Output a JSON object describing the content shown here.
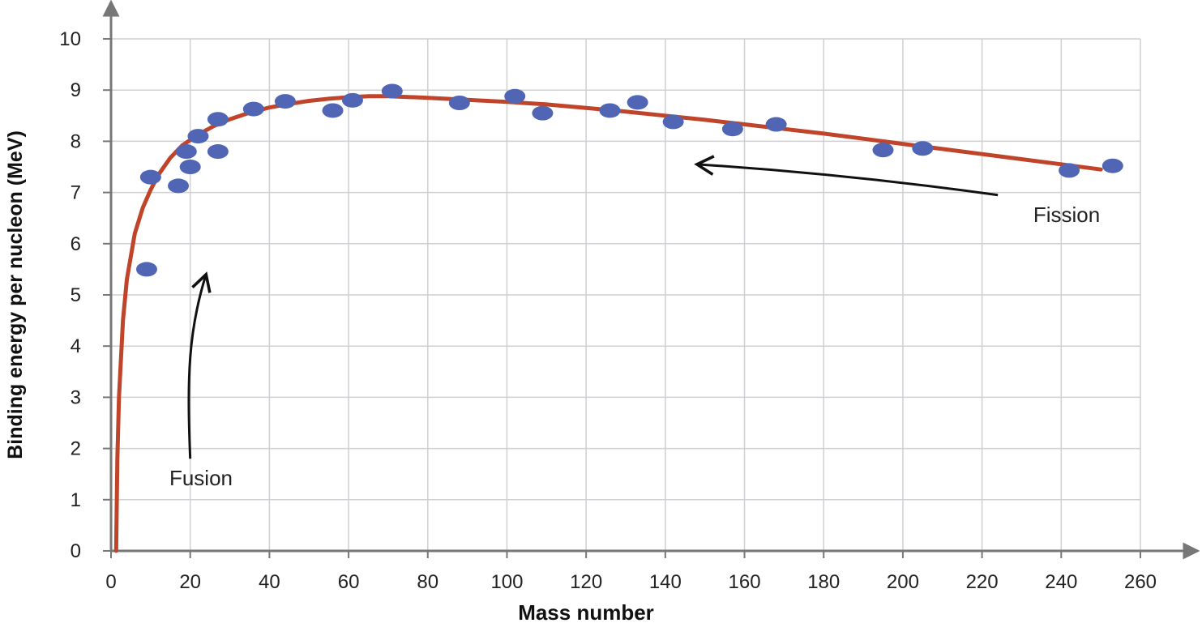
{
  "chart_data": {
    "type": "scatter",
    "title": "",
    "xlabel": "Mass number",
    "ylabel": "Binding energy per nucleon (MeV)",
    "xlim": [
      0,
      260
    ],
    "ylim": [
      0,
      10
    ],
    "x_ticks": [
      0,
      20,
      40,
      60,
      80,
      100,
      120,
      140,
      160,
      180,
      200,
      220,
      240,
      260
    ],
    "y_ticks": [
      0,
      1,
      2,
      3,
      4,
      5,
      6,
      7,
      8,
      9,
      10
    ],
    "grid": true,
    "colors": {
      "points": "#5066b4",
      "curve": "#c0442a",
      "grid": "#cfcfd4",
      "axis": "#777777"
    },
    "points": [
      {
        "x": 9,
        "y": 5.5
      },
      {
        "x": 10,
        "y": 7.3
      },
      {
        "x": 17,
        "y": 7.13
      },
      {
        "x": 19,
        "y": 7.8
      },
      {
        "x": 20,
        "y": 7.5
      },
      {
        "x": 22,
        "y": 8.1
      },
      {
        "x": 27,
        "y": 7.8
      },
      {
        "x": 27,
        "y": 8.43
      },
      {
        "x": 36,
        "y": 8.63
      },
      {
        "x": 44,
        "y": 8.78
      },
      {
        "x": 56,
        "y": 8.6
      },
      {
        "x": 61,
        "y": 8.8
      },
      {
        "x": 71,
        "y": 8.98
      },
      {
        "x": 88,
        "y": 8.75
      },
      {
        "x": 102,
        "y": 8.88
      },
      {
        "x": 109,
        "y": 8.55
      },
      {
        "x": 126,
        "y": 8.6
      },
      {
        "x": 133,
        "y": 8.76
      },
      {
        "x": 142,
        "y": 8.38
      },
      {
        "x": 157,
        "y": 8.24
      },
      {
        "x": 168,
        "y": 8.33
      },
      {
        "x": 195,
        "y": 7.83
      },
      {
        "x": 205,
        "y": 7.86
      },
      {
        "x": 242,
        "y": 7.43
      },
      {
        "x": 253,
        "y": 7.52
      }
    ],
    "curve": {
      "x": [
        1.3,
        1.6,
        2,
        3,
        4,
        6,
        8,
        10,
        12,
        15,
        18,
        22,
        26,
        30,
        35,
        40,
        45,
        50,
        55,
        60,
        65,
        70,
        80,
        90,
        100,
        110,
        120,
        130,
        140,
        150,
        160,
        170,
        180,
        190,
        200,
        210,
        220,
        230,
        240,
        250
      ],
      "y": [
        0,
        1.8,
        3.0,
        4.5,
        5.3,
        6.2,
        6.7,
        7.05,
        7.35,
        7.68,
        7.92,
        8.13,
        8.3,
        8.43,
        8.56,
        8.66,
        8.73,
        8.79,
        8.83,
        8.86,
        8.88,
        8.88,
        8.85,
        8.81,
        8.77,
        8.72,
        8.65,
        8.58,
        8.5,
        8.42,
        8.33,
        8.24,
        8.15,
        8.05,
        7.95,
        7.85,
        7.75,
        7.65,
        7.55,
        7.45
      ]
    },
    "annotations": [
      {
        "text": "Fusion",
        "arrow_from": {
          "x": 20,
          "y": 1.8
        },
        "arrow_to": {
          "x": 24,
          "y": 5.4
        }
      },
      {
        "text": "Fission",
        "arrow_from": {
          "x": 224,
          "y": 6.95
        },
        "arrow_to": {
          "x": 148,
          "y": 7.55
        }
      }
    ]
  }
}
